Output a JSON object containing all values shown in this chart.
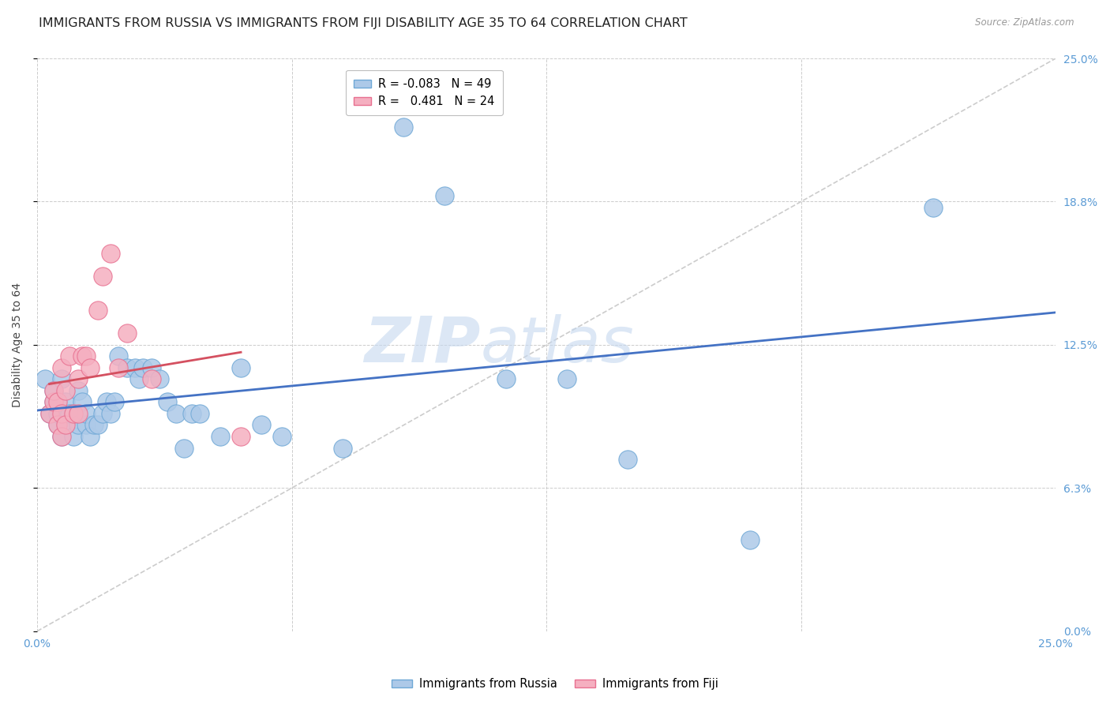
{
  "title": "IMMIGRANTS FROM RUSSIA VS IMMIGRANTS FROM FIJI DISABILITY AGE 35 TO 64 CORRELATION CHART",
  "source": "Source: ZipAtlas.com",
  "ylabel": "Disability Age 35 to 64",
  "xmin": 0.0,
  "xmax": 0.25,
  "ymin": 0.0,
  "ymax": 0.25,
  "yticks": [
    0.0,
    0.0625,
    0.125,
    0.1875,
    0.25
  ],
  "ytick_labels_right": [
    "0.0%",
    "6.3%",
    "12.5%",
    "18.8%",
    "25.0%"
  ],
  "xticks": [
    0.0,
    0.0625,
    0.125,
    0.1875,
    0.25
  ],
  "xtick_labels": [
    "0.0%",
    "",
    "",
    "",
    "25.0%"
  ],
  "russia_color": "#adc9e8",
  "fiji_color": "#f5afc0",
  "russia_edge": "#6fa8d6",
  "fiji_edge": "#e87090",
  "trend_russia_color": "#4472c4",
  "trend_fiji_color": "#d45060",
  "legend_russia_r": "-0.083",
  "legend_russia_n": "49",
  "legend_fiji_r": "0.481",
  "legend_fiji_n": "24",
  "watermark_zip": "ZIP",
  "watermark_atlas": "atlas",
  "russia_x": [
    0.002,
    0.003,
    0.004,
    0.004,
    0.005,
    0.005,
    0.006,
    0.006,
    0.007,
    0.007,
    0.008,
    0.009,
    0.009,
    0.01,
    0.01,
    0.011,
    0.012,
    0.012,
    0.013,
    0.014,
    0.015,
    0.016,
    0.017,
    0.018,
    0.019,
    0.02,
    0.022,
    0.024,
    0.025,
    0.026,
    0.028,
    0.03,
    0.032,
    0.034,
    0.036,
    0.038,
    0.04,
    0.045,
    0.05,
    0.055,
    0.06,
    0.075,
    0.09,
    0.1,
    0.115,
    0.13,
    0.145,
    0.175,
    0.22
  ],
  "russia_y": [
    0.11,
    0.095,
    0.1,
    0.105,
    0.09,
    0.095,
    0.085,
    0.11,
    0.09,
    0.1,
    0.095,
    0.085,
    0.095,
    0.09,
    0.105,
    0.1,
    0.09,
    0.095,
    0.085,
    0.09,
    0.09,
    0.095,
    0.1,
    0.095,
    0.1,
    0.12,
    0.115,
    0.115,
    0.11,
    0.115,
    0.115,
    0.11,
    0.1,
    0.095,
    0.08,
    0.095,
    0.095,
    0.085,
    0.115,
    0.09,
    0.085,
    0.08,
    0.22,
    0.19,
    0.11,
    0.11,
    0.075,
    0.04,
    0.185
  ],
  "fiji_x": [
    0.003,
    0.004,
    0.004,
    0.005,
    0.005,
    0.006,
    0.006,
    0.006,
    0.007,
    0.007,
    0.008,
    0.009,
    0.01,
    0.01,
    0.011,
    0.012,
    0.013,
    0.015,
    0.016,
    0.018,
    0.02,
    0.022,
    0.028,
    0.05
  ],
  "fiji_y": [
    0.095,
    0.1,
    0.105,
    0.09,
    0.1,
    0.085,
    0.095,
    0.115,
    0.09,
    0.105,
    0.12,
    0.095,
    0.095,
    0.11,
    0.12,
    0.12,
    0.115,
    0.14,
    0.155,
    0.165,
    0.115,
    0.13,
    0.11,
    0.085
  ],
  "background_color": "#ffffff",
  "grid_color": "#cccccc",
  "axis_label_color": "#5b9bd5",
  "title_color": "#222222",
  "title_fontsize": 11.5,
  "axis_fontsize": 10
}
